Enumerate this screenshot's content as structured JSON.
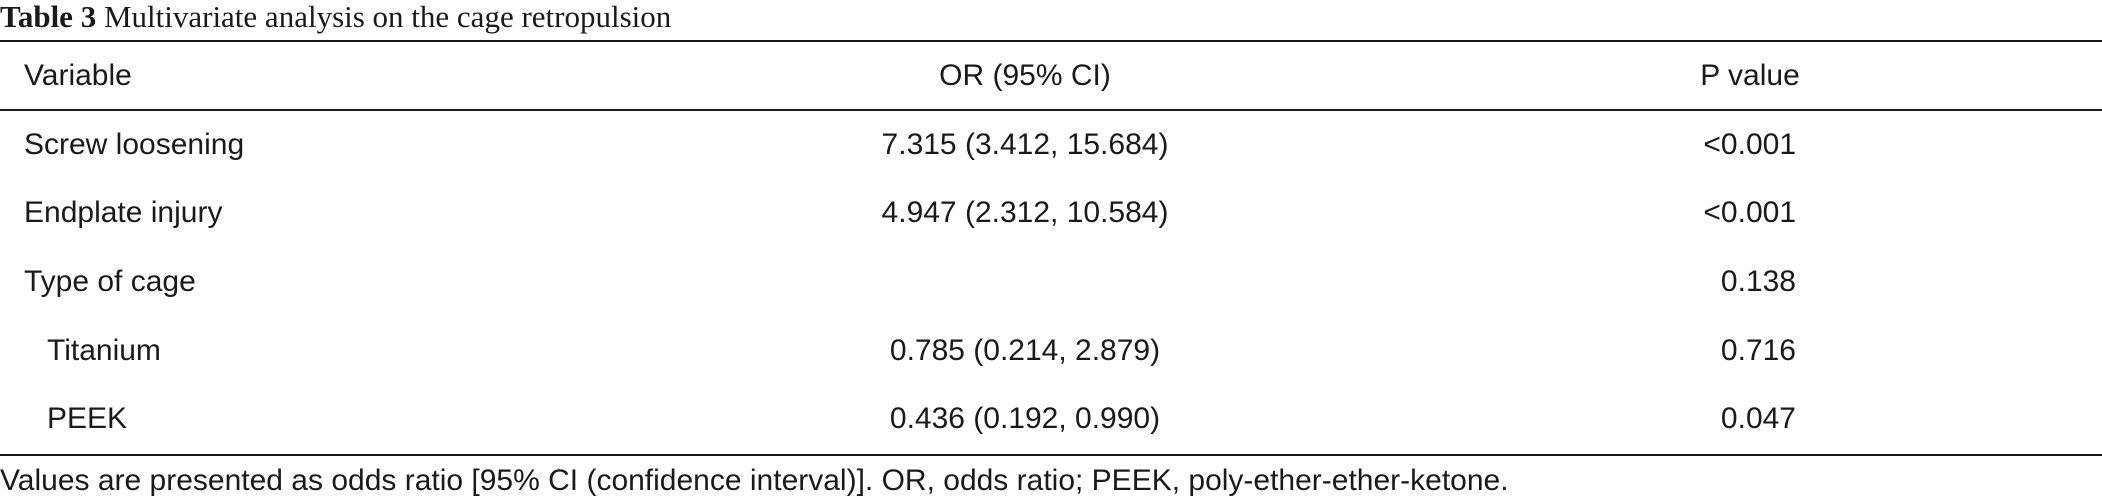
{
  "table": {
    "caption_label": "Table 3",
    "caption_text": "Multivariate analysis on the cage retropulsion",
    "headers": {
      "variable": "Variable",
      "or": "OR (95% CI)",
      "p": "P value"
    },
    "rows": [
      {
        "variable": "Screw loosening",
        "or": "7.315 (3.412, 15.684)",
        "p": "<0.001"
      },
      {
        "variable": "Endplate injury",
        "or": "4.947 (2.312, 10.584)",
        "p": "<0.001"
      },
      {
        "variable": "Type of cage",
        "or": "",
        "p": "0.138"
      },
      {
        "variable": "Titanium",
        "or": "0.785 (0.214, 2.879)",
        "p": "0.716"
      },
      {
        "variable": "PEEK",
        "or": "0.436 (0.192, 0.990)",
        "p": "0.047"
      }
    ],
    "footnote": "Values are presented as odds ratio [95% CI (confidence interval)]. OR, odds ratio; PEEK, poly-ether-ether-ketone."
  }
}
